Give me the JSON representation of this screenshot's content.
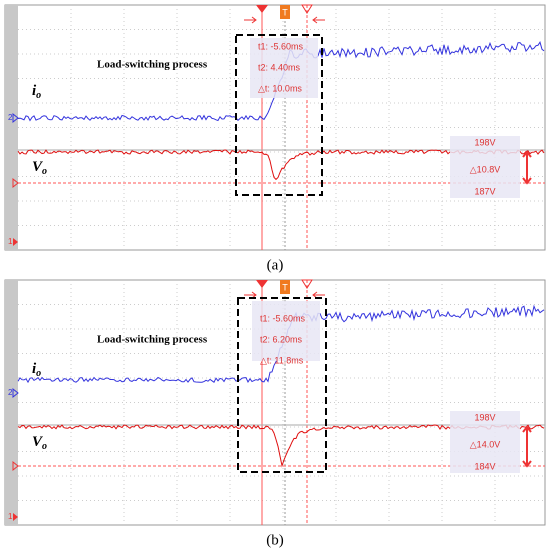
{
  "panels": [
    {
      "annotation": "Load-switching process",
      "current_label": {
        "symbol": "i",
        "subscript": "o"
      },
      "voltage_label": {
        "symbol": "V",
        "subscript": "o"
      },
      "trigger_marker": "T",
      "channel_markers": [
        "2",
        "1"
      ],
      "cursor_readouts": [
        "t1: -5.60ms",
        "t2: 4.40ms",
        "△t: 10.0ms"
      ],
      "voltage_readouts": {
        "upper": "198V",
        "delta": "△10.8V",
        "lower": "187V"
      },
      "caption": "(a)"
    },
    {
      "annotation": "Load-switching process",
      "current_label": {
        "symbol": "i",
        "subscript": "o"
      },
      "voltage_label": {
        "symbol": "V",
        "subscript": "o"
      },
      "trigger_marker": "T",
      "channel_markers": [
        "2",
        "1"
      ],
      "cursor_readouts": [
        "t1: -5.60ms",
        "t2: 6.20ms",
        "△t: 11.8ms"
      ],
      "voltage_readouts": {
        "upper": "198V",
        "delta": "△14.0V",
        "lower": "184V"
      },
      "caption": "(b)"
    }
  ]
}
